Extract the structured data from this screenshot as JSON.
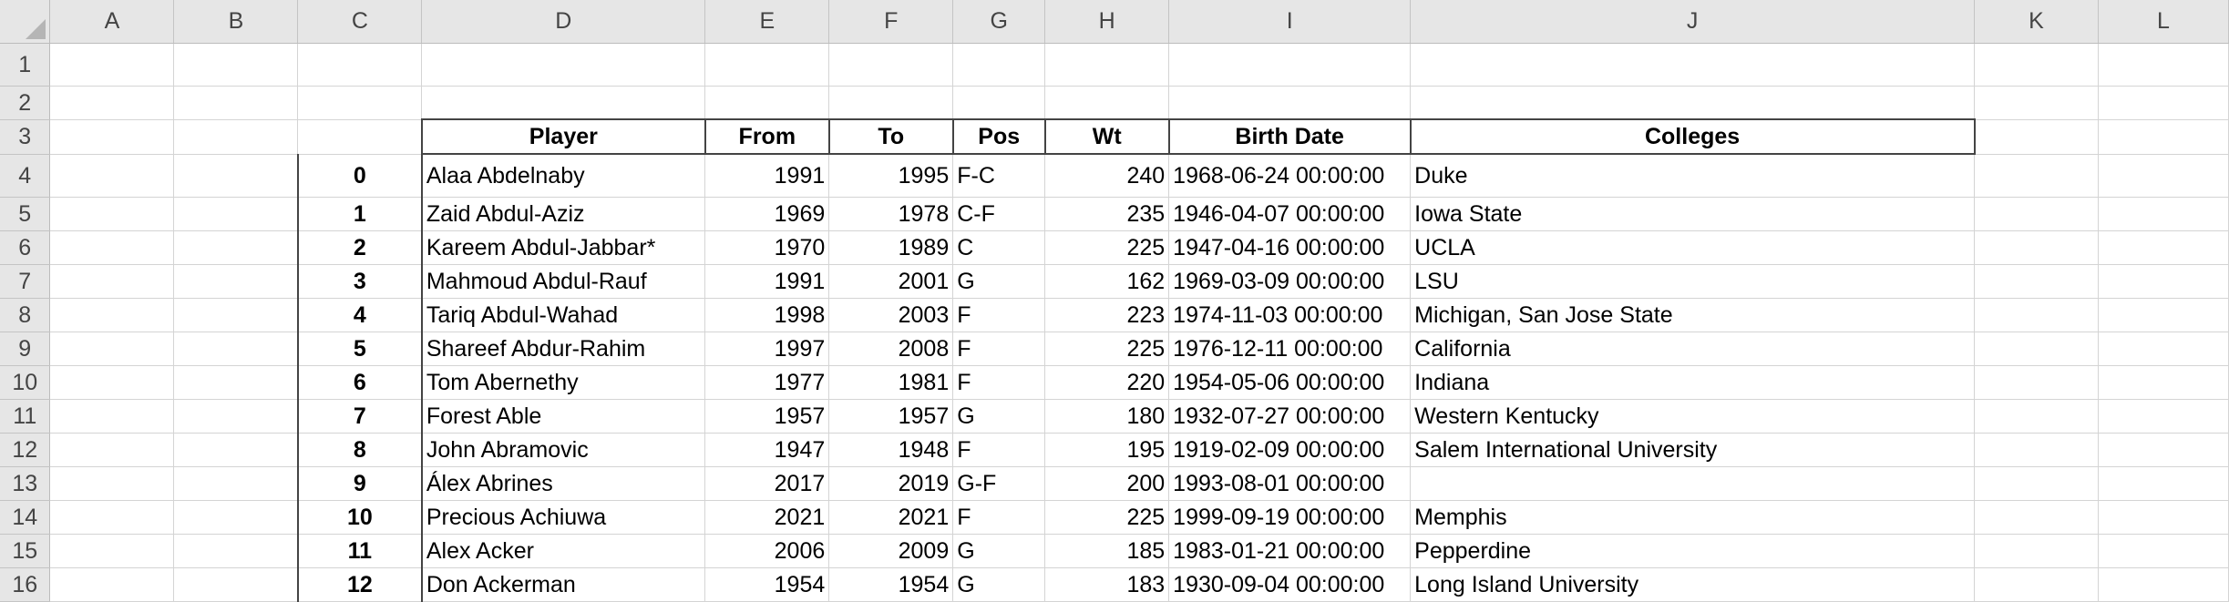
{
  "columns": [
    "A",
    "B",
    "C",
    "D",
    "E",
    "F",
    "G",
    "H",
    "I",
    "J",
    "K",
    "L"
  ],
  "row_numbers": [
    "1",
    "2",
    "3",
    "4",
    "5",
    "6",
    "7",
    "8",
    "9",
    "10",
    "11",
    "12",
    "13",
    "14",
    "15",
    "16"
  ],
  "header": {
    "player": "Player",
    "from": "From",
    "to": "To",
    "pos": "Pos",
    "wt": "Wt",
    "birth_date": "Birth Date",
    "colleges": "Colleges"
  },
  "rows": [
    {
      "idx": "0",
      "player": "Alaa Abdelnaby",
      "from": "1991",
      "to": "1995",
      "pos": "F-C",
      "wt": "240",
      "birth": "1968-06-24 00:00:00",
      "college": "Duke"
    },
    {
      "idx": "1",
      "player": "Zaid Abdul-Aziz",
      "from": "1969",
      "to": "1978",
      "pos": "C-F",
      "wt": "235",
      "birth": "1946-04-07 00:00:00",
      "college": "Iowa State"
    },
    {
      "idx": "2",
      "player": "Kareem Abdul-Jabbar*",
      "from": "1970",
      "to": "1989",
      "pos": "C",
      "wt": "225",
      "birth": "1947-04-16 00:00:00",
      "college": "UCLA"
    },
    {
      "idx": "3",
      "player": "Mahmoud Abdul-Rauf",
      "from": "1991",
      "to": "2001",
      "pos": "G",
      "wt": "162",
      "birth": "1969-03-09 00:00:00",
      "college": "LSU"
    },
    {
      "idx": "4",
      "player": "Tariq Abdul-Wahad",
      "from": "1998",
      "to": "2003",
      "pos": "F",
      "wt": "223",
      "birth": "1974-11-03 00:00:00",
      "college": "Michigan, San Jose State"
    },
    {
      "idx": "5",
      "player": "Shareef Abdur-Rahim",
      "from": "1997",
      "to": "2008",
      "pos": "F",
      "wt": "225",
      "birth": "1976-12-11 00:00:00",
      "college": "California"
    },
    {
      "idx": "6",
      "player": "Tom Abernethy",
      "from": "1977",
      "to": "1981",
      "pos": "F",
      "wt": "220",
      "birth": "1954-05-06 00:00:00",
      "college": "Indiana"
    },
    {
      "idx": "7",
      "player": "Forest Able",
      "from": "1957",
      "to": "1957",
      "pos": "G",
      "wt": "180",
      "birth": "1932-07-27 00:00:00",
      "college": "Western Kentucky"
    },
    {
      "idx": "8",
      "player": "John Abramovic",
      "from": "1947",
      "to": "1948",
      "pos": "F",
      "wt": "195",
      "birth": "1919-02-09 00:00:00",
      "college": "Salem International University"
    },
    {
      "idx": "9",
      "player": "Álex Abrines",
      "from": "2017",
      "to": "2019",
      "pos": "G-F",
      "wt": "200",
      "birth": "1993-08-01 00:00:00",
      "college": ""
    },
    {
      "idx": "10",
      "player": "Precious Achiuwa",
      "from": "2021",
      "to": "2021",
      "pos": "F",
      "wt": "225",
      "birth": "1999-09-19 00:00:00",
      "college": "Memphis"
    },
    {
      "idx": "11",
      "player": "Alex Acker",
      "from": "2006",
      "to": "2009",
      "pos": "G",
      "wt": "185",
      "birth": "1983-01-21 00:00:00",
      "college": "Pepperdine"
    },
    {
      "idx": "12",
      "player": "Don Ackerman",
      "from": "1954",
      "to": "1954",
      "pos": "G",
      "wt": "183",
      "birth": "1930-09-04 00:00:00",
      "college": "Long Island University"
    }
  ]
}
